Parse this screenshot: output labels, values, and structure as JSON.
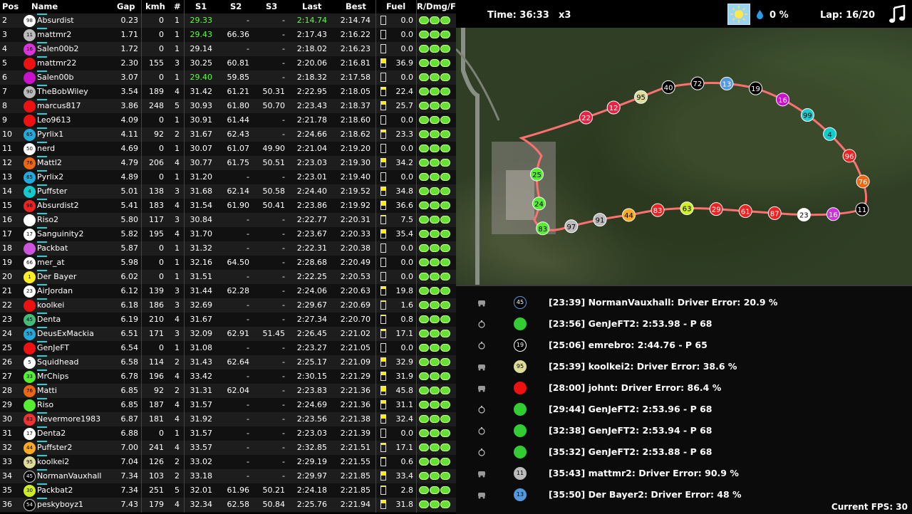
{
  "header": {
    "columns": [
      "Pos",
      "Name",
      "Gap",
      "kmh",
      "#",
      "S1",
      "S2",
      "S3",
      "Last",
      "Best",
      "Fuel",
      "R/Dmg/F"
    ],
    "time": "Time: 36:33",
    "time_multiplier": "x3",
    "rain": "0 %",
    "lap": "Lap: 16/20",
    "weather_icon": "sun-icon",
    "music_icon": "music-note-icon"
  },
  "colors": {
    "best_sector": "#5dff3a",
    "fuel_bar": "#ffee00",
    "accent_cyan": "#29d0d6",
    "track": "#ff6060"
  },
  "standings": [
    {
      "pos": "2",
      "num": "98",
      "color": "#ffffff",
      "name": "Absurdist",
      "gap": "0.23",
      "kmh": "0",
      "lap": "1",
      "s1": "29.33",
      "s2": "-",
      "s3": "-",
      "last": "2:14.74",
      "best": "2:14.74",
      "fuel": "0.0",
      "fuel_level": 0.0,
      "s1_green": true,
      "last_green": true
    },
    {
      "pos": "3",
      "num": "11",
      "color": "#bbbbbb",
      "name": "mattmr2",
      "gap": "1.71",
      "kmh": "0",
      "lap": "1",
      "s1": "29.43",
      "s2": "66.36",
      "s3": "-",
      "last": "2:17.43",
      "best": "2:16.22",
      "fuel": "0.0",
      "fuel_level": 0.0,
      "s1_green": true
    },
    {
      "pos": "4",
      "num": "16",
      "color": "#dd33dd",
      "name": "Salen00b2",
      "gap": "1.72",
      "kmh": "0",
      "lap": "1",
      "s1": "29.14",
      "s2": "-",
      "s3": "-",
      "last": "2:18.02",
      "best": "2:16.23",
      "fuel": "0.0",
      "fuel_level": 0.0
    },
    {
      "pos": "5",
      "num": "",
      "color": "#ee1111",
      "name": "mattmr22",
      "gap": "2.30",
      "kmh": "155",
      "lap": "3",
      "s1": "30.25",
      "s2": "60.81",
      "s3": "-",
      "last": "2:20.06",
      "best": "2:16.81",
      "fuel": "36.9",
      "fuel_level": 0.5
    },
    {
      "pos": "6",
      "num": "",
      "color": "#cc11cc",
      "name": "Salen00b",
      "gap": "3.07",
      "kmh": "0",
      "lap": "1",
      "s1": "29.40",
      "s2": "59.85",
      "s3": "-",
      "last": "2:18.32",
      "best": "2:17.58",
      "fuel": "0.0",
      "fuel_level": 0.0,
      "s1_green": true
    },
    {
      "pos": "7",
      "num": "90",
      "color": "#bbbbbb",
      "name": "TheBobWiley",
      "gap": "3.54",
      "kmh": "189",
      "lap": "4",
      "s1": "31.42",
      "s2": "61.21",
      "s3": "50.31",
      "last": "2:22.95",
      "best": "2:18.05",
      "fuel": "22.4",
      "fuel_level": 0.3
    },
    {
      "pos": "8",
      "num": "",
      "color": "#ee1111",
      "name": "marcus817",
      "gap": "3.86",
      "kmh": "248",
      "lap": "5",
      "s1": "30.93",
      "s2": "61.80",
      "s3": "50.70",
      "last": "2:23.43",
      "best": "2:18.37",
      "fuel": "25.7",
      "fuel_level": 0.35
    },
    {
      "pos": "9",
      "num": "",
      "color": "#ee1111",
      "name": "Leo9613",
      "gap": "4.09",
      "kmh": "0",
      "lap": "1",
      "s1": "30.91",
      "s2": "61.44",
      "s3": "-",
      "last": "2:21.78",
      "best": "2:18.60",
      "fuel": "0.0",
      "fuel_level": 0.0
    },
    {
      "pos": "10",
      "num": "65",
      "color": "#22aadd",
      "name": "Pyrlix1",
      "gap": "4.11",
      "kmh": "92",
      "lap": "2",
      "s1": "31.67",
      "s2": "62.43",
      "s3": "-",
      "last": "2:24.66",
      "best": "2:18.62",
      "fuel": "23.3",
      "fuel_level": 0.3
    },
    {
      "pos": "11",
      "num": "50",
      "color": "#ffffff",
      "name": "nerd",
      "gap": "4.69",
      "kmh": "0",
      "lap": "1",
      "s1": "30.07",
      "s2": "61.07",
      "s3": "49.90",
      "last": "2:21.04",
      "best": "2:19.20",
      "fuel": "0.0",
      "fuel_level": 0.0
    },
    {
      "pos": "12",
      "num": "76",
      "color": "#ee6611",
      "name": "Mattl2",
      "gap": "4.79",
      "kmh": "206",
      "lap": "4",
      "s1": "30.77",
      "s2": "61.75",
      "s3": "50.51",
      "last": "2:23.03",
      "best": "2:19.30",
      "fuel": "34.2",
      "fuel_level": 0.45
    },
    {
      "pos": "13",
      "num": "65",
      "color": "#22aadd",
      "name": "Pyrlix2",
      "gap": "4.89",
      "kmh": "0",
      "lap": "1",
      "s1": "31.20",
      "s2": "-",
      "s3": "-",
      "last": "2:23.01",
      "best": "2:19.40",
      "fuel": "0.0",
      "fuel_level": 0.0
    },
    {
      "pos": "14",
      "num": "4",
      "color": "#11cccc",
      "name": "Puffster",
      "gap": "5.01",
      "kmh": "138",
      "lap": "3",
      "s1": "31.68",
      "s2": "62.14",
      "s3": "50.58",
      "last": "2:24.40",
      "best": "2:19.52",
      "fuel": "34.8",
      "fuel_level": 0.45
    },
    {
      "pos": "15",
      "num": "96",
      "color": "#ee2222",
      "name": "Absurdist2",
      "gap": "5.41",
      "kmh": "183",
      "lap": "4",
      "s1": "31.54",
      "s2": "61.90",
      "s3": "50.41",
      "last": "2:23.86",
      "best": "2:19.92",
      "fuel": "36.6",
      "fuel_level": 0.5
    },
    {
      "pos": "16",
      "num": "",
      "color": "#ffffff",
      "name": "Riso2",
      "gap": "5.80",
      "kmh": "117",
      "lap": "3",
      "s1": "30.84",
      "s2": "-",
      "s3": "-",
      "last": "2:22.77",
      "best": "2:20.31",
      "fuel": "7.5",
      "fuel_level": 0.1
    },
    {
      "pos": "17",
      "num": "17",
      "color": "#ffffff",
      "name": "Sanguinity2",
      "gap": "5.82",
      "kmh": "195",
      "lap": "4",
      "s1": "31.70",
      "s2": "-",
      "s3": "-",
      "last": "2:23.67",
      "best": "2:20.33",
      "fuel": "35.4",
      "fuel_level": 0.45
    },
    {
      "pos": "18",
      "num": "",
      "color": "#cc55dd",
      "name": "Packbat",
      "gap": "5.87",
      "kmh": "0",
      "lap": "1",
      "s1": "31.32",
      "s2": "-",
      "s3": "-",
      "last": "2:22.31",
      "best": "2:20.38",
      "fuel": "0.0",
      "fuel_level": 0.0
    },
    {
      "pos": "19",
      "num": "66",
      "color": "#ffffff",
      "name": "mer_at",
      "gap": "5.98",
      "kmh": "0",
      "lap": "1",
      "s1": "32.16",
      "s2": "64.50",
      "s3": "-",
      "last": "2:28.68",
      "best": "2:20.49",
      "fuel": "0.0",
      "fuel_level": 0.0
    },
    {
      "pos": "20",
      "num": "1",
      "color": "#ffee22",
      "name": "Der Bayer",
      "gap": "6.02",
      "kmh": "0",
      "lap": "1",
      "s1": "31.51",
      "s2": "-",
      "s3": "-",
      "last": "2:22.25",
      "best": "2:20.53",
      "fuel": "0.0",
      "fuel_level": 0.0
    },
    {
      "pos": "21",
      "num": "23",
      "color": "#ffffff",
      "name": "AirJordan",
      "gap": "6.12",
      "kmh": "139",
      "lap": "3",
      "s1": "31.44",
      "s2": "62.28",
      "s3": "-",
      "last": "2:24.06",
      "best": "2:20.63",
      "fuel": "19.8",
      "fuel_level": 0.25
    },
    {
      "pos": "22",
      "num": "",
      "color": "#ee1111",
      "name": "koolkei",
      "gap": "6.18",
      "kmh": "186",
      "lap": "3",
      "s1": "32.69",
      "s2": "-",
      "s3": "-",
      "last": "2:29.67",
      "best": "2:20.69",
      "fuel": "1.6",
      "fuel_level": 0.02
    },
    {
      "pos": "23",
      "num": "45",
      "color": "#44bb77",
      "name": "Denta",
      "gap": "6.19",
      "kmh": "210",
      "lap": "4",
      "s1": "31.67",
      "s2": "-",
      "s3": "-",
      "last": "2:27.34",
      "best": "2:20.70",
      "fuel": "0.8",
      "fuel_level": 0.01
    },
    {
      "pos": "24",
      "num": "55",
      "color": "#22aadd",
      "name": "DeusExMackia",
      "gap": "6.51",
      "kmh": "171",
      "lap": "3",
      "s1": "32.09",
      "s2": "62.91",
      "s3": "51.45",
      "last": "2:26.45",
      "best": "2:21.02",
      "fuel": "17.1",
      "fuel_level": 0.2
    },
    {
      "pos": "25",
      "num": "",
      "color": "#ee1111",
      "name": "GenJeFT",
      "gap": "6.54",
      "kmh": "0",
      "lap": "1",
      "s1": "31.08",
      "s2": "-",
      "s3": "-",
      "last": "2:23.27",
      "best": "2:21.05",
      "fuel": "0.0",
      "fuel_level": 0.0
    },
    {
      "pos": "26",
      "num": "5",
      "color": "#ffffff",
      "name": "Squidhead",
      "gap": "6.58",
      "kmh": "114",
      "lap": "2",
      "s1": "31.43",
      "s2": "62.64",
      "s3": "-",
      "last": "2:25.17",
      "best": "2:21.09",
      "fuel": "32.9",
      "fuel_level": 0.45
    },
    {
      "pos": "27",
      "num": "33",
      "color": "#55ee33",
      "name": "MrChips",
      "gap": "6.78",
      "kmh": "196",
      "lap": "4",
      "s1": "33.42",
      "s2": "-",
      "s3": "-",
      "last": "2:30.15",
      "best": "2:21.29",
      "fuel": "31.9",
      "fuel_level": 0.4
    },
    {
      "pos": "28",
      "num": "76",
      "color": "#ee6611",
      "name": "Matti",
      "gap": "6.85",
      "kmh": "92",
      "lap": "2",
      "s1": "31.31",
      "s2": "62.04",
      "s3": "-",
      "last": "2:23.83",
      "best": "2:21.36",
      "fuel": "45.8",
      "fuel_level": 0.6
    },
    {
      "pos": "29",
      "num": "",
      "color": "#55ee33",
      "name": "Riso",
      "gap": "6.85",
      "kmh": "187",
      "lap": "4",
      "s1": "31.57",
      "s2": "-",
      "s3": "-",
      "last": "2:24.69",
      "best": "2:21.36",
      "fuel": "31.1",
      "fuel_level": 0.4
    },
    {
      "pos": "30",
      "num": "83",
      "color": "#ee3333",
      "name": "Nevermore1983",
      "gap": "6.87",
      "kmh": "181",
      "lap": "4",
      "s1": "31.92",
      "s2": "-",
      "s3": "-",
      "last": "2:23.56",
      "best": "2:21.38",
      "fuel": "32.4",
      "fuel_level": 0.45
    },
    {
      "pos": "31",
      "num": "17",
      "color": "#ffffff",
      "name": "Denta2",
      "gap": "6.88",
      "kmh": "0",
      "lap": "1",
      "s1": "31.57",
      "s2": "-",
      "s3": "-",
      "last": "2:23.03",
      "best": "2:21.39",
      "fuel": "0.0",
      "fuel_level": 0.0
    },
    {
      "pos": "32",
      "num": "44",
      "color": "#ffaa22",
      "name": "Puffster2",
      "gap": "7.00",
      "kmh": "241",
      "lap": "4",
      "s1": "33.57",
      "s2": "-",
      "s3": "-",
      "last": "2:32.85",
      "best": "2:21.51",
      "fuel": "17.1",
      "fuel_level": 0.2
    },
    {
      "pos": "33",
      "num": "95",
      "color": "#dddd99",
      "name": "koolkei2",
      "gap": "7.04",
      "kmh": "126",
      "lap": "2",
      "s1": "33.02",
      "s2": "-",
      "s3": "-",
      "last": "2:29.19",
      "best": "2:21.55",
      "fuel": "0.6",
      "fuel_level": 0.01
    },
    {
      "pos": "34",
      "num": "45",
      "color": "#000000",
      "name": "NormanVauxhall",
      "gap": "7.34",
      "kmh": "103",
      "lap": "2",
      "s1": "33.18",
      "s2": "-",
      "s3": "-",
      "last": "2:29.97",
      "best": "2:21.85",
      "fuel": "33.4",
      "fuel_level": 0.45
    },
    {
      "pos": "35",
      "num": "30",
      "color": "#ccee22",
      "name": "Packbat2",
      "gap": "7.34",
      "kmh": "251",
      "lap": "5",
      "s1": "32.01",
      "s2": "61.96",
      "s3": "50.21",
      "last": "2:24.18",
      "best": "2:21.85",
      "fuel": "2.8",
      "fuel_level": 0.03
    },
    {
      "pos": "36",
      "num": "54",
      "color": "#000000",
      "name": "peskyboyz1",
      "gap": "7.43",
      "kmh": "179",
      "lap": "4",
      "s1": "32.34",
      "s2": "62.58",
      "s3": "50.84",
      "last": "2:25.76",
      "best": "2:21.94",
      "fuel": "31.8",
      "fuel_level": 0.4
    }
  ],
  "map_cars": [
    {
      "num": "22",
      "color": "#ee2244"
    },
    {
      "num": "12",
      "color": "#ee2244"
    },
    {
      "num": "95",
      "color": "#dddd99"
    },
    {
      "num": "40",
      "color": "#000000"
    },
    {
      "num": "72",
      "color": "#000000"
    },
    {
      "num": "13",
      "color": "#5599dd"
    },
    {
      "num": "19",
      "color": "#000000"
    },
    {
      "num": "16",
      "color": "#cc11cc"
    },
    {
      "num": "99",
      "color": "#22cccc"
    },
    {
      "num": "4",
      "color": "#11cccc"
    },
    {
      "num": "96",
      "color": "#ee2222"
    },
    {
      "num": "76",
      "color": "#ee6611"
    },
    {
      "num": "11",
      "color": "#000000"
    },
    {
      "num": "16",
      "color": "#cc33dd"
    },
    {
      "num": "23",
      "color": "#ffffff"
    },
    {
      "num": "87",
      "color": "#ee2222"
    },
    {
      "num": "61",
      "color": "#ee2222"
    },
    {
      "num": "29",
      "color": "#ee2222"
    },
    {
      "num": "63",
      "color": "#ccee22"
    },
    {
      "num": "83",
      "color": "#ee2222"
    },
    {
      "num": "44",
      "color": "#ffaa22"
    },
    {
      "num": "91",
      "color": "#bbbbbb"
    },
    {
      "num": "97",
      "color": "#bbbbbb"
    },
    {
      "num": "83",
      "color": "#55ee33"
    },
    {
      "num": "24",
      "color": "#55ee33"
    },
    {
      "num": "25",
      "color": "#55ee33"
    }
  ],
  "events": [
    {
      "icon": "crash-icon",
      "num": "45",
      "color": "#000000",
      "border": "#5599dd",
      "text": "[23:39] NormanVauxhall: Driver Error: 20.9 %"
    },
    {
      "icon": "stopwatch-icon",
      "num": "",
      "color": "#33cc33",
      "border": "#33cc33",
      "text": "[23:56] GenJeFT2: 2:53.98 - P 68"
    },
    {
      "icon": "stopwatch-icon",
      "num": "19",
      "color": "#000000",
      "border": "#ffffff",
      "text": "[25:06] emrebro: 2:44.76 - P 65"
    },
    {
      "icon": "crash-icon",
      "num": "95",
      "color": "#dddd99",
      "border": "#dddd99",
      "text": "[25:39] koolkei2: Driver Error: 38.6 %"
    },
    {
      "icon": "crash-icon",
      "num": "",
      "color": "#ee1111",
      "border": "#ee1111",
      "text": "[28:00] johnt: Driver Error: 86.4 %"
    },
    {
      "icon": "stopwatch-icon",
      "num": "",
      "color": "#33cc33",
      "border": "#33cc33",
      "text": "[29:44] GenJeFT2: 2:53.96 - P 68"
    },
    {
      "icon": "stopwatch-icon",
      "num": "",
      "color": "#33cc33",
      "border": "#33cc33",
      "text": "[32:38] GenJeFT2: 2:53.94 - P 68"
    },
    {
      "icon": "stopwatch-icon",
      "num": "",
      "color": "#33cc33",
      "border": "#33cc33",
      "text": "[35:32] GenJeFT2: 2:53.88 - P 68"
    },
    {
      "icon": "crash-icon",
      "num": "11",
      "color": "#bbbbbb",
      "border": "#bbbbbb",
      "text": "[35:43] mattmr2: Driver Error: 90.9 %"
    },
    {
      "icon": "crash-icon",
      "num": "13",
      "color": "#5599dd",
      "border": "#5599dd",
      "text": "[35:50] Der Bayer2: Driver Error: 48 %"
    }
  ],
  "fps": "Current FPS: 30"
}
